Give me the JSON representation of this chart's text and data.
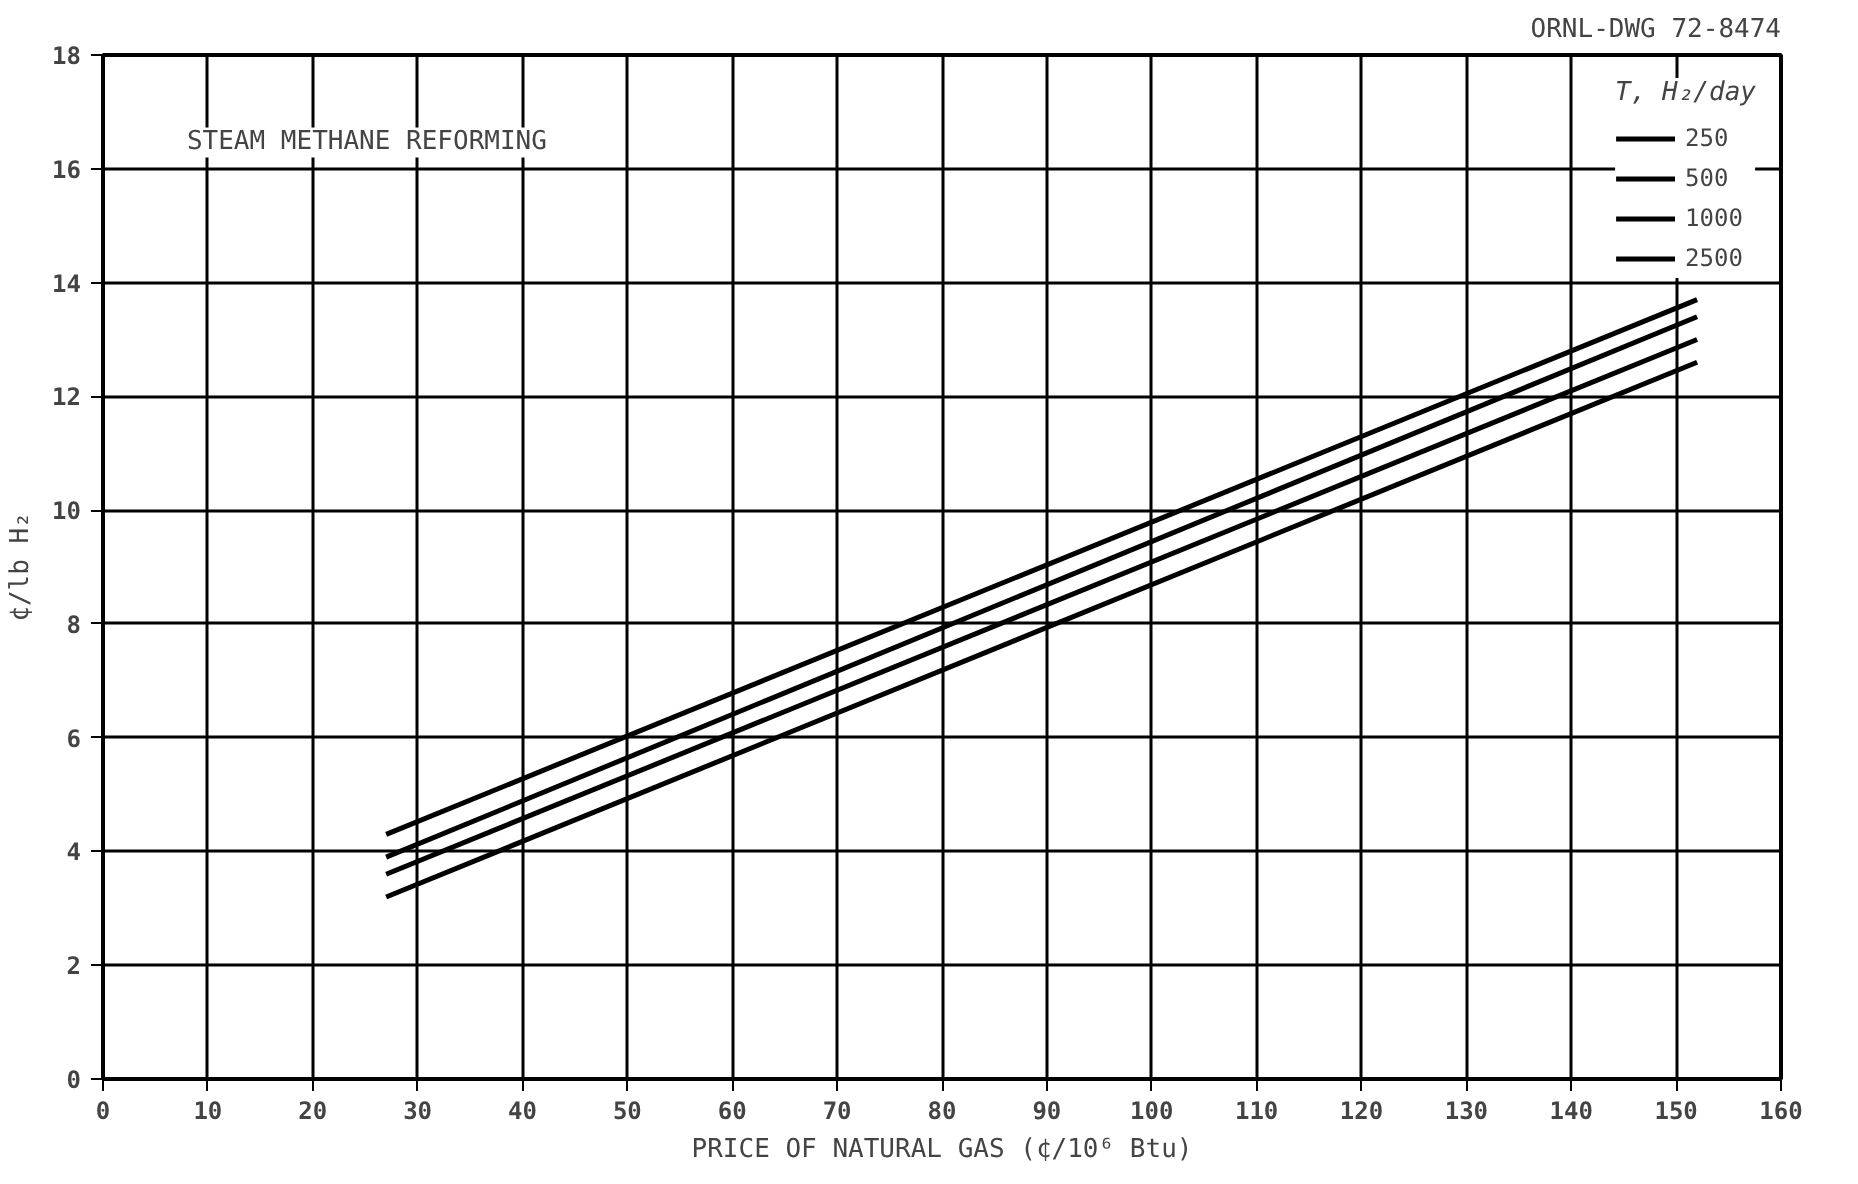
{
  "chart_data": {
    "type": "line",
    "title": "STEAM METHANE REFORMING",
    "xlabel": "PRICE OF NATURAL GAS (¢/10⁶ Btu)",
    "ylabel": "¢/lb H₂",
    "legend_title": "T, H₂/day",
    "annotations": [
      "ORNL-DWG 72-8474"
    ],
    "x": [
      27,
      152
    ],
    "series": [
      {
        "name": "250",
        "color": "#000000",
        "values": [
          4.3,
          13.7
        ]
      },
      {
        "name": "500",
        "color": "#000000",
        "values": [
          3.9,
          13.4
        ]
      },
      {
        "name": "1000",
        "color": "#000000",
        "values": [
          3.6,
          13.0
        ]
      },
      {
        "name": "2500",
        "color": "#000000",
        "values": [
          3.2,
          12.6
        ]
      }
    ],
    "xlim": [
      0,
      160
    ],
    "ylim": [
      0,
      18
    ],
    "xticks": [
      0,
      10,
      20,
      30,
      40,
      50,
      60,
      70,
      80,
      90,
      100,
      110,
      120,
      130,
      140,
      150,
      160
    ],
    "yticks": [
      0,
      2,
      4,
      6,
      8,
      10,
      12,
      14,
      16,
      18
    ],
    "grid": true,
    "legend": "top right",
    "line_style": "solid"
  }
}
